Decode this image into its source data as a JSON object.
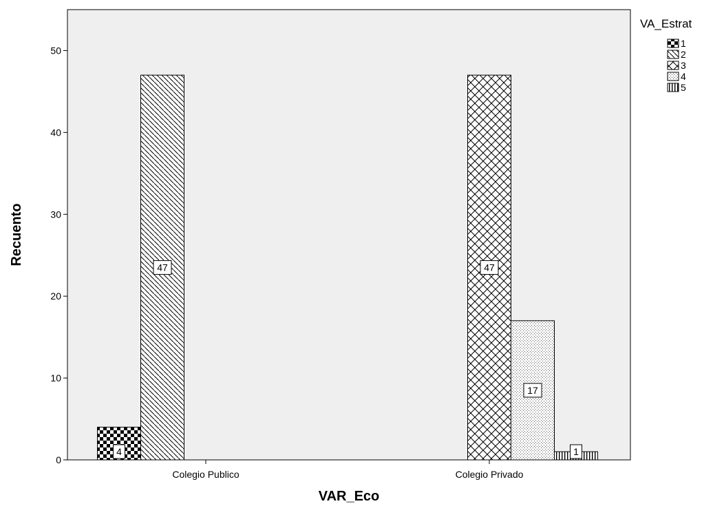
{
  "chart_data": {
    "type": "bar",
    "xlabel": "VAR_Eco",
    "ylabel": "Recuento",
    "categories": [
      "Colegio Publico",
      "Colegio Privado"
    ],
    "ylim": [
      0,
      55
    ],
    "yticks": [
      0,
      10,
      20,
      30,
      40,
      50
    ],
    "legend_title": "VA_Estrat",
    "legend_position": "top-right outside",
    "plot_background": "#efefef",
    "series": [
      {
        "name": "1",
        "pattern": "checker",
        "values": [
          4,
          null
        ],
        "labels": [
          "4",
          ""
        ]
      },
      {
        "name": "2",
        "pattern": "diagonal-hatch",
        "values": [
          47,
          null
        ],
        "labels": [
          "47",
          ""
        ]
      },
      {
        "name": "3",
        "pattern": "cross-hatch",
        "values": [
          null,
          47
        ],
        "labels": [
          "",
          "47"
        ]
      },
      {
        "name": "4",
        "pattern": "dots",
        "values": [
          null,
          17
        ],
        "labels": [
          "",
          "17"
        ]
      },
      {
        "name": "5",
        "pattern": "vertical-lines",
        "values": [
          null,
          1
        ],
        "labels": [
          "",
          "1"
        ]
      }
    ]
  }
}
